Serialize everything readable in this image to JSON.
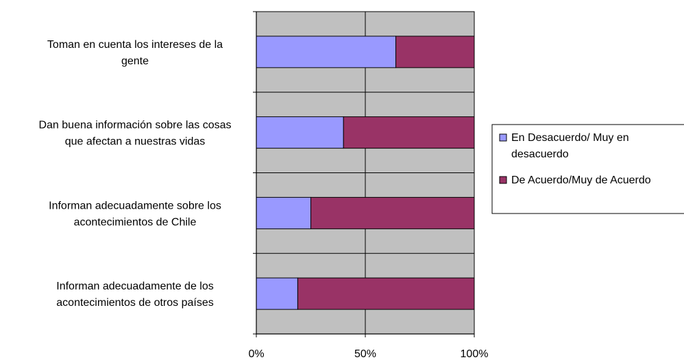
{
  "chart_data": {
    "type": "bar",
    "orientation": "horizontal",
    "stacked": "percent",
    "categories": [
      "Toman en cuenta los intereses de la gente",
      "Dan buena información sobre las cosas que afectan a nuestras vidas",
      "Informan adecuadamente sobre los acontecimientos de Chile",
      "Informan adecuadamente de los acontecimientos de otros países"
    ],
    "category_lines": [
      [
        "Toman en cuenta los intereses de la",
        "gente"
      ],
      [
        "Dan buena información sobre las cosas",
        "que afectan a nuestras vidas"
      ],
      [
        "Informan adecuadamente sobre los",
        "acontecimientos de Chile"
      ],
      [
        "Informan adecuadamente de los",
        "acontecimientos de otros países"
      ]
    ],
    "series": [
      {
        "name": "En Desacuerdo/ Muy en desacuerdo",
        "legend_lines": [
          "En Desacuerdo/ Muy en",
          "desacuerdo"
        ],
        "color": "#9999FF",
        "values": [
          64,
          40,
          25,
          19
        ]
      },
      {
        "name": "De Acuerdo/Muy de Acuerdo",
        "legend_lines": [
          "De Acuerdo/Muy de Acuerdo"
        ],
        "color": "#993366",
        "values": [
          36,
          60,
          75,
          81
        ]
      }
    ],
    "xlim": [
      0,
      100
    ],
    "xticks": [
      "0%",
      "50%",
      "100%"
    ],
    "grid": true,
    "plot_background": "#C0C0C0",
    "legend_position": "right"
  }
}
